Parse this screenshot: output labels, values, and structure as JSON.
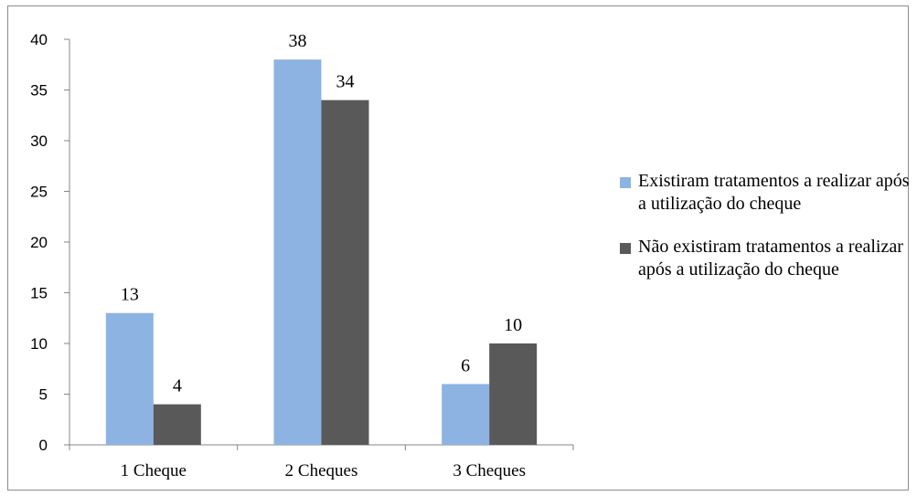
{
  "chart_data": {
    "type": "bar",
    "categories": [
      "1 Cheque",
      "2 Cheques",
      "3 Cheques"
    ],
    "series": [
      {
        "name": "Existiram tratamentos a realizar após a utilização do cheque",
        "color": "#8db3e2",
        "values": [
          13,
          38,
          6
        ]
      },
      {
        "name": "Não existiram tratamentos a realizar após a utilização do cheque",
        "color": "#595959",
        "values": [
          4,
          34,
          10
        ]
      }
    ],
    "y_ticks": [
      "0",
      "5",
      "10",
      "15",
      "20",
      "25",
      "30",
      "35",
      "40"
    ],
    "ylim": [
      0,
      40
    ],
    "grid": false,
    "legend_position": "right"
  }
}
